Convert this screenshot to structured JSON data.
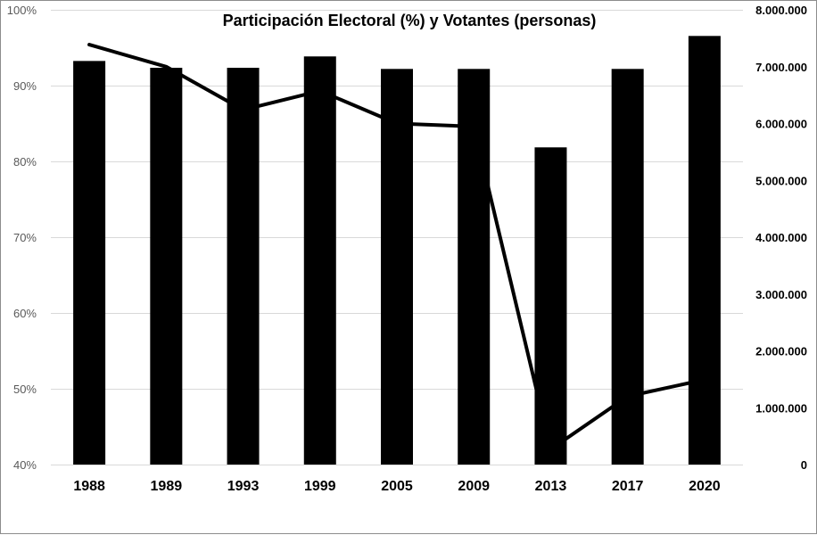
{
  "chart_data": {
    "type": "bar",
    "title": "Participación  Electoral (%) y Votantes (personas)",
    "categories": [
      "1988",
      "1989",
      "1993",
      "1999",
      "2005",
      "2009",
      "2013",
      "2017",
      "2020"
    ],
    "series": [
      {
        "name": "Votantes (personas)",
        "type": "bar",
        "axis": "right",
        "values": [
          7100000,
          6980000,
          6980000,
          7180000,
          6960000,
          6960000,
          5580000,
          6960000,
          7540000
        ]
      },
      {
        "name": "Participación Electoral (%)",
        "type": "line",
        "axis": "left",
        "values": [
          95.4,
          92.5,
          86.8,
          89.3,
          85.0,
          84.6,
          42.0,
          49.0,
          51.2
        ]
      }
    ],
    "y_left": {
      "ylim": [
        40,
        100
      ],
      "ticks": [
        40,
        50,
        60,
        70,
        80,
        90,
        100
      ],
      "tick_labels": [
        "40%",
        "50%",
        "60%",
        "70%",
        "80%",
        "90%",
        "100%"
      ]
    },
    "y_right": {
      "ylim": [
        0,
        8000000
      ],
      "ticks": [
        0,
        1000000,
        2000000,
        3000000,
        4000000,
        5000000,
        6000000,
        7000000,
        8000000
      ],
      "tick_labels": [
        "0",
        "1.000.000",
        "2.000.000",
        "3.000.000",
        "4.000.000",
        "5.000.000",
        "6.000.000",
        "7.000.000",
        "8.000.000"
      ]
    },
    "grid": true,
    "colors": {
      "bars": "#000000",
      "line": "#000000",
      "grid": "#d9d9d9",
      "frame": "#8c8c8c"
    }
  }
}
